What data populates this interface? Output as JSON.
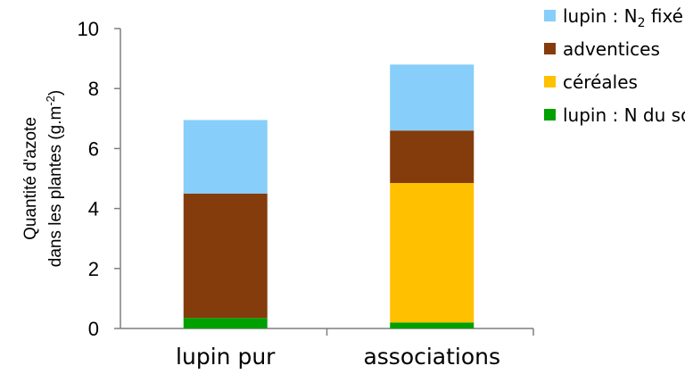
{
  "chart_data": {
    "type": "bar",
    "stacked": true,
    "categories": [
      "lupin pur",
      "associations"
    ],
    "series": [
      {
        "name": "lupin : N du sol",
        "color": "#00a000",
        "values": [
          0.35,
          0.2
        ]
      },
      {
        "name": "céréales",
        "color": "#ffc000",
        "values": [
          0,
          4.65
        ]
      },
      {
        "name": "adventices",
        "color": "#843c0c",
        "values": [
          4.15,
          1.75
        ]
      },
      {
        "name": "lupin : N2 fixé",
        "color": "#87cefa",
        "values": [
          2.45,
          2.2
        ]
      }
    ],
    "legend_order": [
      3,
      2,
      1,
      0
    ],
    "ylabel_line1": "Quantité d'azote",
    "ylabel_line2": "dans les plantes (g.m",
    "ylabel_sup": "-2",
    "ylabel_close": ")",
    "ylim": [
      0,
      10
    ],
    "yticks": [
      0,
      2,
      4,
      6,
      8,
      10
    ],
    "legend_position": "top-right",
    "grid": false
  }
}
